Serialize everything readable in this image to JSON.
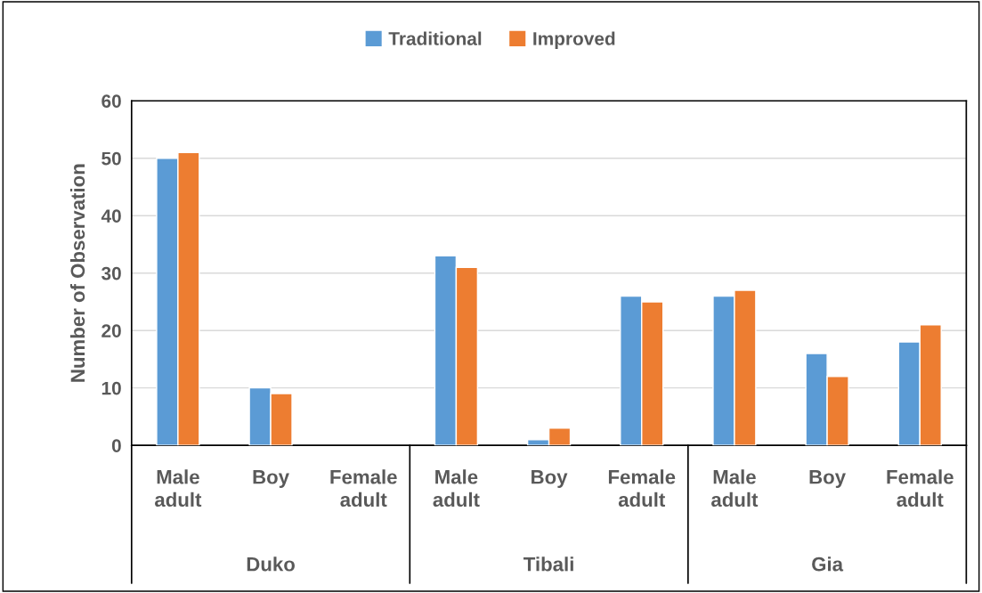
{
  "chart_data": {
    "type": "bar",
    "ylabel": "Number of Observation",
    "categories": [
      "Male\nadult",
      "Boy",
      "Female\nadult",
      "Male\nadult",
      "Boy",
      "Female\nadult",
      "Male\nadult",
      "Boy",
      "Female\nadult"
    ],
    "series": [
      {
        "name": "Traditional",
        "color": "#5b9bd5",
        "values": [
          50,
          10,
          null,
          33,
          1,
          26,
          26,
          16,
          18
        ]
      },
      {
        "name": "Improved",
        "color": "#ed7d31",
        "values": [
          51,
          9,
          null,
          31,
          3,
          25,
          27,
          12,
          21
        ]
      }
    ],
    "annotations": [
      "Duko",
      "Tibali",
      "Gia"
    ],
    "ylim": [
      0,
      60
    ],
    "yticks": [
      0,
      10,
      20,
      30,
      40,
      50,
      60
    ],
    "grid": "y",
    "legend": "top"
  }
}
